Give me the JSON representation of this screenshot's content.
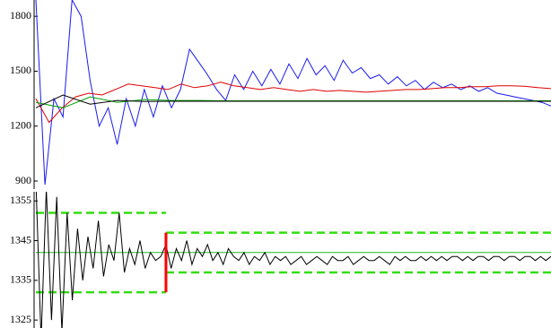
{
  "chart_data": [
    {
      "type": "line",
      "ylim": [
        856,
        1889
      ],
      "yticks": [
        900,
        1200,
        1500,
        1800
      ],
      "series": [
        {
          "color": "#1a1aee",
          "values": [
            1890,
            880,
            1350,
            1250,
            1890,
            1800,
            1450,
            1200,
            1300,
            1100,
            1350,
            1200,
            1400,
            1250,
            1420,
            1300,
            1400,
            1620,
            1550,
            1480,
            1400,
            1340,
            1480,
            1400,
            1500,
            1420,
            1510,
            1430,
            1540,
            1460,
            1570,
            1480,
            1530,
            1450,
            1560,
            1490,
            1520,
            1460,
            1480,
            1430,
            1470,
            1420,
            1450,
            1400,
            1440,
            1410,
            1430,
            1400,
            1420,
            1390,
            1410,
            1380,
            1370,
            1360,
            1350,
            1340,
            1330,
            1310
          ]
        },
        {
          "color": "#e00000",
          "values": [
            1350,
            1220,
            1300,
            1360,
            1380,
            1370,
            1400,
            1430,
            1420,
            1410,
            1400,
            1430,
            1410,
            1420,
            1440,
            1420,
            1410,
            1400,
            1410,
            1400,
            1390,
            1400,
            1390,
            1395,
            1390,
            1385,
            1390,
            1395,
            1400,
            1400,
            1405,
            1410,
            1410,
            1415,
            1415,
            1420,
            1420,
            1418,
            1410,
            1405
          ]
        },
        {
          "color": "#00a000",
          "values": [
            1330,
            1300,
            1360,
            1330,
            1345,
            1340,
            1340,
            1338,
            1338,
            1338,
            1338,
            1338,
            1338,
            1338,
            1338,
            1338,
            1338,
            1338,
            1338,
            1338
          ]
        },
        {
          "color": "#000000",
          "values": [
            1300,
            1370,
            1320,
            1340,
            1335,
            1336,
            1336,
            1336,
            1336,
            1336,
            1336,
            1336,
            1336,
            1336,
            1336,
            1336,
            1336,
            1336,
            1336,
            1336
          ]
        }
      ]
    },
    {
      "type": "line",
      "ylim": [
        1323,
        1357.3
      ],
      "yticks": [
        1325,
        1335,
        1345,
        1355
      ],
      "series": [
        {
          "color": "#000000",
          "values": [
            1360,
            1320,
            1358,
            1325,
            1356,
            1322,
            1352,
            1330,
            1348,
            1335,
            1346,
            1338,
            1350,
            1336,
            1344,
            1340,
            1352,
            1337,
            1343,
            1339,
            1345,
            1338,
            1342,
            1340,
            1341,
            1344,
            1338,
            1343,
            1340,
            1345,
            1339,
            1343,
            1341,
            1344,
            1340,
            1342,
            1339,
            1343,
            1341,
            1340,
            1342,
            1339,
            1341,
            1340,
            1342,
            1339,
            1341,
            1340,
            1341,
            1339,
            1340,
            1341,
            1339,
            1340,
            1341,
            1340,
            1339,
            1341,
            1340,
            1340,
            1341,
            1339,
            1340,
            1341,
            1340,
            1340,
            1341,
            1340,
            1339,
            1341,
            1340,
            1341,
            1340,
            1340,
            1341,
            1340,
            1341,
            1340,
            1341,
            1340,
            1341,
            1341,
            1340,
            1341,
            1340,
            1341,
            1341,
            1340,
            1341,
            1341,
            1340,
            1341,
            1341,
            1340,
            1341,
            1341,
            1340,
            1341,
            1340,
            1341
          ]
        }
      ],
      "reference": {
        "value": 1342,
        "color": "#22bb22"
      },
      "bands": [
        {
          "from": 0,
          "to": 25,
          "upper": 1352,
          "lower": 1332
        },
        {
          "from": 25,
          "to": 99,
          "upper": 1347,
          "lower": 1337
        }
      ],
      "band_color": "#33dd11",
      "split_color": "#ff0000"
    }
  ]
}
